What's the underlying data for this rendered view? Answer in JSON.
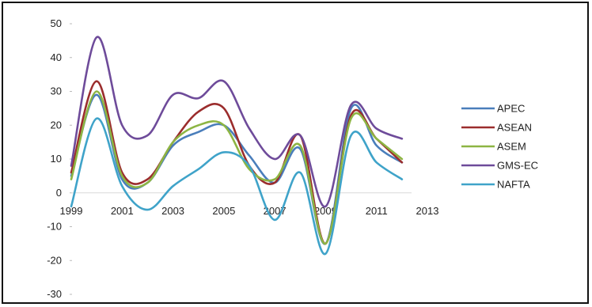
{
  "chart_data": {
    "type": "line",
    "title": "",
    "xlabel": "",
    "ylabel": "",
    "ylim": [
      -30,
      50
    ],
    "xlim": [
      1999,
      2013
    ],
    "y_ticks": [
      "50",
      "40",
      "30",
      "20",
      "10",
      "0",
      "-10",
      "-20",
      "-30"
    ],
    "x_ticks": [
      "1999",
      "2001",
      "2003",
      "2005",
      "2007",
      "2009",
      "2011",
      "2013"
    ],
    "grid": false,
    "legend_position": "right",
    "x": [
      1999,
      2000,
      2001,
      2002,
      2003,
      2004,
      2005,
      2006,
      2007,
      2008,
      2009,
      2010,
      2011,
      2012
    ],
    "series": [
      {
        "name": "APEC",
        "color": "#4a7ebb",
        "values": [
          5,
          29,
          4,
          3,
          14,
          18,
          20,
          11,
          3,
          13,
          -15,
          25,
          14,
          9
        ]
      },
      {
        "name": "ASEAN",
        "color": "#9b2d2d",
        "values": [
          6,
          33,
          6,
          4,
          15,
          24,
          25,
          8,
          3,
          17,
          -15,
          23,
          16,
          9
        ]
      },
      {
        "name": "ASEM",
        "color": "#8db543",
        "values": [
          4,
          30,
          5,
          3,
          15,
          20,
          20,
          7,
          4,
          14,
          -15,
          22,
          16,
          10
        ]
      },
      {
        "name": "GMS-EC",
        "color": "#6e4b9a",
        "values": [
          8,
          46,
          20,
          17,
          29,
          28,
          33,
          19,
          10,
          17,
          -4,
          26,
          19,
          16
        ]
      },
      {
        "name": "NAFTA",
        "color": "#3fa3c9",
        "values": [
          -4,
          22,
          2,
          -5,
          2,
          7,
          12,
          8,
          -8,
          6,
          -18,
          17,
          9,
          4
        ]
      }
    ]
  }
}
